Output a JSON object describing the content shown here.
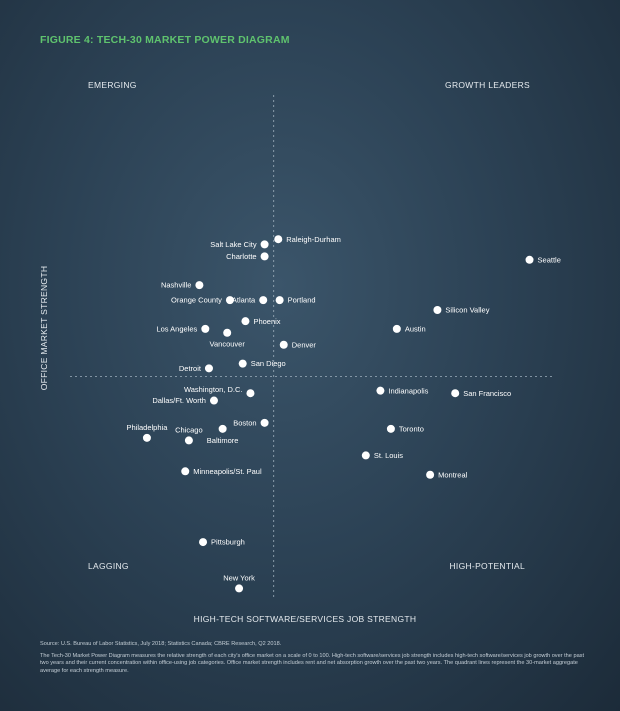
{
  "title": "FIGURE 4: TECH-30 MARKET POWER DIAGRAM",
  "source": "Source: U.S. Bureau of Labor Statistics, July 2018; Statistics Canada; CBRE Research, Q2 2018.",
  "note": "The Tech-30 Market Power Diagram measures the relative strength of each city's office market on a scale of 0 to 100. High-tech software/services job strength includes high-tech software/services job growth over the past two years and their current concentration within office-using job categories. Office market strength includes rent and net absorption growth over the past two years. The quadrant lines represent the 30-market aggregate average for each strength measure.",
  "chart_data": {
    "type": "scatter",
    "xlabel": "HIGH-TECH SOFTWARE/SERVICES JOB STRENGTH",
    "ylabel": "OFFICE MARKET STRENGTH",
    "xlim": [
      0,
      100
    ],
    "ylim": [
      0,
      100
    ],
    "quadrant_lines": {
      "x": 42.7,
      "y": 50
    },
    "quadrants": {
      "top_left": "EMERGING",
      "top_right": "GROWTH LEADERS",
      "bottom_left": "LAGGING",
      "bottom_right": "HIGH-POTENTIAL"
    },
    "grid": false,
    "points": [
      {
        "label": "Raleigh-Durham",
        "x": 43.7,
        "y": 82.0,
        "label_pos": "right"
      },
      {
        "label": "Salt Lake City",
        "x": 40.7,
        "y": 80.8,
        "label_pos": "left"
      },
      {
        "label": "Charlotte",
        "x": 40.7,
        "y": 78.0,
        "label_pos": "left"
      },
      {
        "label": "Seattle",
        "x": 98.8,
        "y": 77.2,
        "label_pos": "right"
      },
      {
        "label": "Nashville",
        "x": 26.4,
        "y": 71.3,
        "label_pos": "left"
      },
      {
        "label": "Orange County",
        "x": 33.1,
        "y": 67.8,
        "label_pos": "left"
      },
      {
        "label": "Atlanta",
        "x": 40.4,
        "y": 67.8,
        "label_pos": "left"
      },
      {
        "label": "Portland",
        "x": 44.0,
        "y": 67.8,
        "label_pos": "right"
      },
      {
        "label": "Silicon Valley",
        "x": 78.6,
        "y": 65.5,
        "label_pos": "right"
      },
      {
        "label": "Phoenix",
        "x": 36.5,
        "y": 62.9,
        "label_pos": "right"
      },
      {
        "label": "Los Angeles",
        "x": 27.7,
        "y": 61.1,
        "label_pos": "left"
      },
      {
        "label": "Vancouver",
        "x": 32.5,
        "y": 60.2,
        "label_pos": "below"
      },
      {
        "label": "Austin",
        "x": 69.7,
        "y": 61.1,
        "label_pos": "right"
      },
      {
        "label": "Denver",
        "x": 44.9,
        "y": 57.4,
        "label_pos": "right"
      },
      {
        "label": "San Diego",
        "x": 35.9,
        "y": 53.0,
        "label_pos": "right"
      },
      {
        "label": "Detroit",
        "x": 28.5,
        "y": 51.9,
        "label_pos": "left"
      },
      {
        "label": "Washington, D.C.",
        "x": 37.6,
        "y": 46.1,
        "label_pos": "above-left"
      },
      {
        "label": "Dallas/Ft. Worth",
        "x": 29.6,
        "y": 44.4,
        "label_pos": "left"
      },
      {
        "label": "Indianapolis",
        "x": 66.1,
        "y": 46.7,
        "label_pos": "right"
      },
      {
        "label": "San Francisco",
        "x": 82.5,
        "y": 46.1,
        "label_pos": "right"
      },
      {
        "label": "Boston",
        "x": 40.7,
        "y": 39.2,
        "label_pos": "left"
      },
      {
        "label": "Philadelphia",
        "x": 14.9,
        "y": 35.7,
        "label_pos": "above"
      },
      {
        "label": "Chicago",
        "x": 24.1,
        "y": 35.1,
        "label_pos": "above"
      },
      {
        "label": "Baltimore",
        "x": 31.5,
        "y": 37.8,
        "label_pos": "below"
      },
      {
        "label": "Toronto",
        "x": 68.4,
        "y": 37.8,
        "label_pos": "right"
      },
      {
        "label": "St. Louis",
        "x": 62.9,
        "y": 31.6,
        "label_pos": "right"
      },
      {
        "label": "Minneapolis/St. Paul",
        "x": 23.3,
        "y": 27.9,
        "label_pos": "right"
      },
      {
        "label": "Montreal",
        "x": 77.0,
        "y": 27.1,
        "label_pos": "right"
      },
      {
        "label": "Pittsburgh",
        "x": 27.2,
        "y": 11.4,
        "label_pos": "right"
      },
      {
        "label": "New York",
        "x": 35.1,
        "y": 0.6,
        "label_pos": "above"
      }
    ]
  }
}
